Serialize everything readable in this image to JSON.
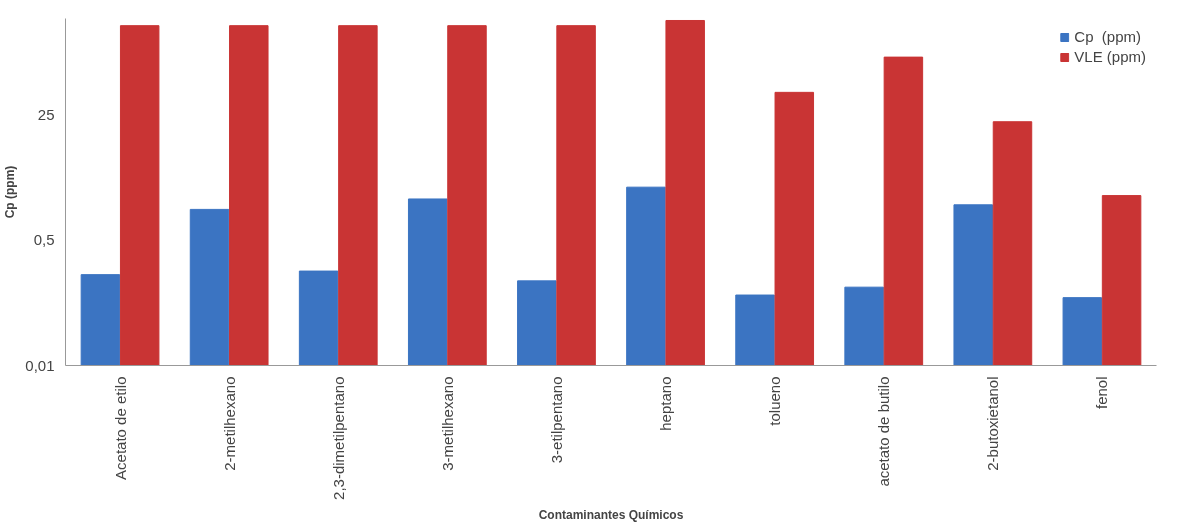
{
  "chart_data": {
    "type": "bar",
    "xlabel": "Contaminantes Químicos",
    "ylabel": "Cp (ppm)",
    "categories": [
      "Acetato de etilo",
      "2-metilhexano",
      "2,3-dimetilpentano",
      "3-metilhexano",
      "3-etilpentano",
      "heptano",
      "tolueno",
      "acetato de butilo",
      "2-butoxietanol",
      "fenol"
    ],
    "series": [
      {
        "name": "Cp  (ppm)",
        "color": "#3b74c2",
        "values": [
          0.17,
          1.3,
          0.19,
          1.8,
          0.14,
          2.6,
          0.09,
          0.115,
          1.5,
          0.083
        ]
      },
      {
        "name": "VLE (ppm)",
        "color": "#c93434",
        "values": [
          400,
          400,
          400,
          400,
          400,
          470,
          50,
          150,
          20,
          2
        ]
      }
    ],
    "log": "y",
    "ylim": [
      0.01,
      500
    ],
    "yticks": [
      {
        "value": 0.01,
        "label": "0,01"
      },
      {
        "value": 0.5,
        "label": "0,5"
      },
      25
    ],
    "grid": false,
    "legend": "top right"
  }
}
